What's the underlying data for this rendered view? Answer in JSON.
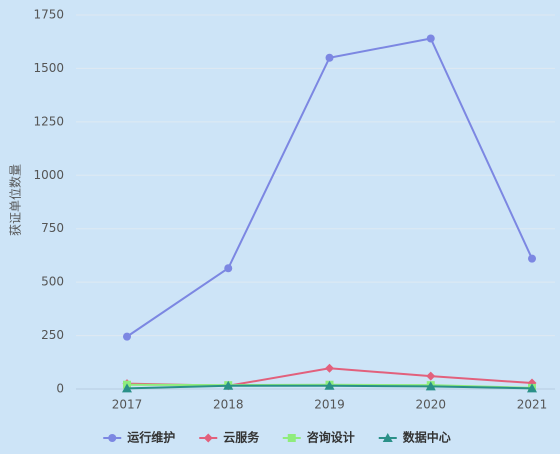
{
  "chart_data": {
    "type": "line",
    "y_label": "获证单位数量",
    "categories": [
      "2017",
      "2018",
      "2019",
      "2020",
      "2021"
    ],
    "series": [
      {
        "name": "运行维护",
        "color": "#7c87e2",
        "marker": "circle",
        "values": [
          245,
          565,
          1550,
          1640,
          610
        ]
      },
      {
        "name": "云服务",
        "color": "#e2607c",
        "marker": "diamond",
        "values": [
          25,
          15,
          97,
          60,
          28
        ]
      },
      {
        "name": "咨询设计",
        "color": "#8fec7c",
        "marker": "square",
        "values": [
          20,
          18,
          20,
          18,
          5
        ]
      },
      {
        "name": "数据中心",
        "color": "#2a9088",
        "marker": "triangle",
        "values": [
          3,
          15,
          15,
          12,
          3
        ]
      }
    ],
    "ylim": [
      0,
      1750
    ],
    "yticks": [
      0,
      250,
      500,
      750,
      1000,
      1250,
      1500,
      1750
    ],
    "grid": true
  }
}
